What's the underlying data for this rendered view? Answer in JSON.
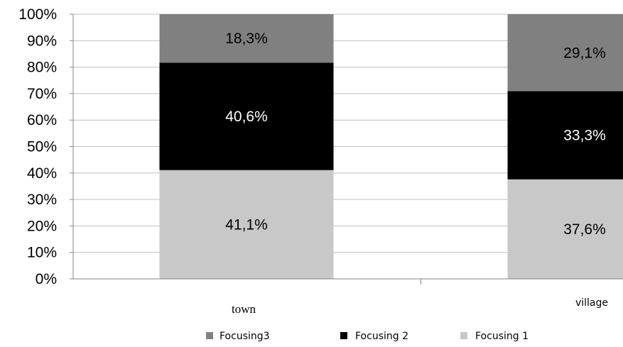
{
  "chart_data": {
    "type": "bar",
    "stacked": true,
    "percent": true,
    "categories": [
      "town",
      "village"
    ],
    "series": [
      {
        "name": "Focusing 1",
        "values": [
          41.1,
          37.6
        ],
        "labels": [
          "41,1%",
          "37,6%"
        ],
        "color": "#c8c8c8",
        "label_color": "#000000"
      },
      {
        "name": "Focusing 2",
        "values": [
          40.6,
          33.3
        ],
        "labels": [
          "40,6%",
          "33,3%"
        ],
        "color": "#000000",
        "label_color": "#ffffff"
      },
      {
        "name": "Focusing3",
        "values": [
          18.3,
          29.1
        ],
        "labels": [
          "18,3%",
          "29,1%"
        ],
        "color": "#808080",
        "label_color": "#000000"
      }
    ],
    "legend_order": [
      "Focusing3",
      "Focusing 2",
      "Focusing 1"
    ],
    "yticks": [
      "0%",
      "10%",
      "20%",
      "30%",
      "40%",
      "50%",
      "60%",
      "70%",
      "80%",
      "90%",
      "100%"
    ],
    "ylim": [
      0,
      100
    ],
    "grid": true,
    "legend_position": "bottom",
    "gridline_color": "#bfbfbf"
  }
}
